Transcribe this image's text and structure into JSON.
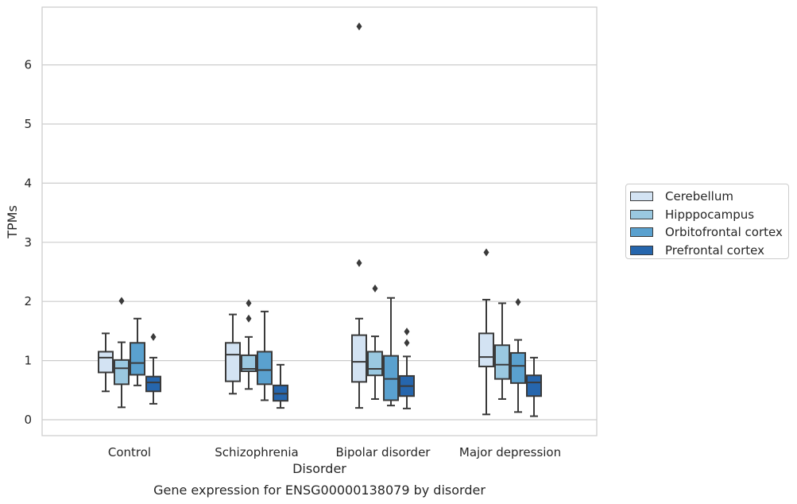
{
  "caption": "Gene expression for ENSG00000138079 by disorder",
  "chart_data": {
    "type": "boxplot",
    "xlabel": "Disorder",
    "ylabel": "TPMs",
    "ylim": [
      -0.25,
      7
    ],
    "yticks": [
      0,
      1,
      2,
      3,
      4,
      5,
      6
    ],
    "grid": "horizontal",
    "legend_position": "right",
    "categories": [
      "Control",
      "Schizophrenia",
      "Bipolar disorder",
      "Major depression"
    ],
    "series": [
      {
        "name": "Cerebellum",
        "color": "#d3e3f3",
        "boxes": [
          {
            "whisker_low": 0.48,
            "q1": 0.8,
            "median": 1.05,
            "q3": 1.15,
            "whisker_high": 1.46,
            "outliers": []
          },
          {
            "whisker_low": 0.44,
            "q1": 0.65,
            "median": 1.1,
            "q3": 1.3,
            "whisker_high": 1.78,
            "outliers": []
          },
          {
            "whisker_low": 0.2,
            "q1": 0.64,
            "median": 0.98,
            "q3": 1.43,
            "whisker_high": 1.71,
            "outliers": [
              2.65,
              6.65
            ]
          },
          {
            "whisker_low": 0.09,
            "q1": 0.9,
            "median": 1.06,
            "q3": 1.46,
            "whisker_high": 2.03,
            "outliers": [
              2.83
            ]
          }
        ]
      },
      {
        "name": "Hipppocampus",
        "color": "#9ac8e0",
        "boxes": [
          {
            "whisker_low": 0.21,
            "q1": 0.6,
            "median": 0.87,
            "q3": 1.01,
            "whisker_high": 1.31,
            "outliers": [
              2.01
            ]
          },
          {
            "whisker_low": 0.52,
            "q1": 0.82,
            "median": 0.86,
            "q3": 1.09,
            "whisker_high": 1.4,
            "outliers": [
              1.71,
              1.97
            ]
          },
          {
            "whisker_low": 0.35,
            "q1": 0.75,
            "median": 0.86,
            "q3": 1.15,
            "whisker_high": 1.41,
            "outliers": [
              2.22
            ]
          },
          {
            "whisker_low": 0.35,
            "q1": 0.69,
            "median": 0.93,
            "q3": 1.26,
            "whisker_high": 1.97,
            "outliers": []
          }
        ]
      },
      {
        "name": "Orbitofrontal cortex",
        "color": "#5aa1cf",
        "boxes": [
          {
            "whisker_low": 0.58,
            "q1": 0.76,
            "median": 0.96,
            "q3": 1.3,
            "whisker_high": 1.71,
            "outliers": []
          },
          {
            "whisker_low": 0.33,
            "q1": 0.6,
            "median": 0.84,
            "q3": 1.15,
            "whisker_high": 1.83,
            "outliers": []
          },
          {
            "whisker_low": 0.24,
            "q1": 0.33,
            "median": 0.69,
            "q3": 1.08,
            "whisker_high": 2.06,
            "outliers": []
          },
          {
            "whisker_low": 0.13,
            "q1": 0.62,
            "median": 0.91,
            "q3": 1.13,
            "whisker_high": 1.35,
            "outliers": [
              1.99
            ]
          }
        ]
      },
      {
        "name": "Prefrontal cortex",
        "color": "#2666ad",
        "boxes": [
          {
            "whisker_low": 0.27,
            "q1": 0.48,
            "median": 0.63,
            "q3": 0.73,
            "whisker_high": 1.05,
            "outliers": [
              1.4
            ]
          },
          {
            "whisker_low": 0.2,
            "q1": 0.32,
            "median": 0.44,
            "q3": 0.58,
            "whisker_high": 0.93,
            "outliers": []
          },
          {
            "whisker_low": 0.19,
            "q1": 0.4,
            "median": 0.57,
            "q3": 0.74,
            "whisker_high": 1.07,
            "outliers": [
              1.3,
              1.49
            ]
          },
          {
            "whisker_low": 0.06,
            "q1": 0.4,
            "median": 0.63,
            "q3": 0.75,
            "whisker_high": 1.05,
            "outliers": []
          }
        ]
      }
    ]
  }
}
